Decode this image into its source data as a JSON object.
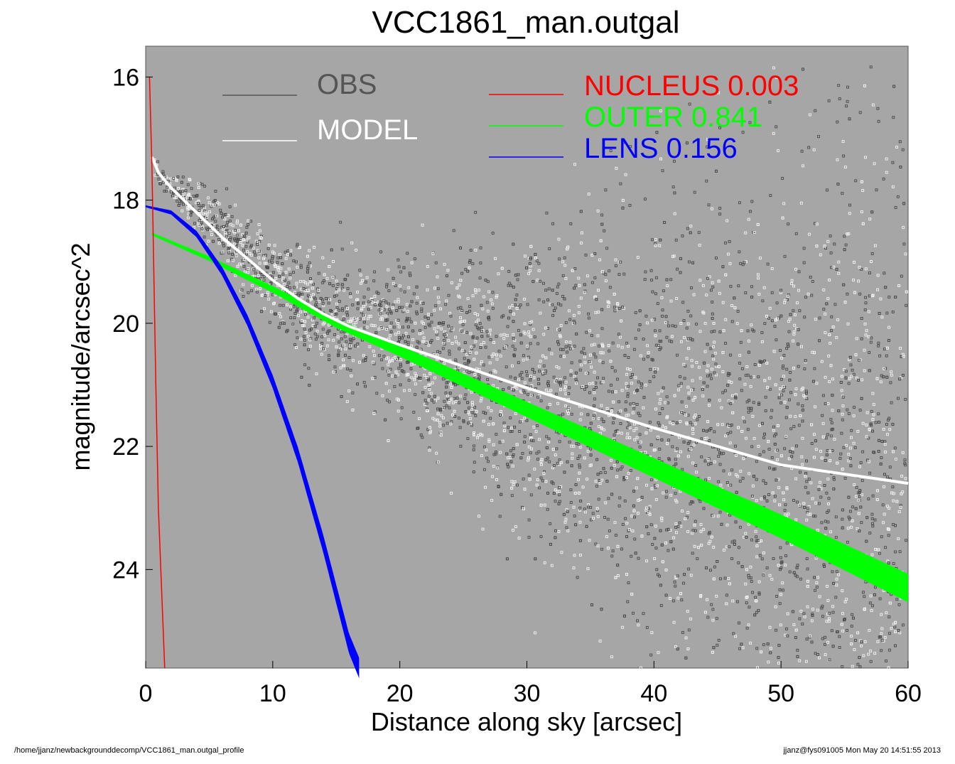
{
  "chart_data": {
    "type": "scatter",
    "title": "VCC1861_man.outgal",
    "xlabel": "Distance along sky [arcsec]",
    "ylabel": "magnitude/arcsec^2",
    "xlim": [
      0,
      60
    ],
    "ylim": [
      25.6,
      15.5
    ],
    "y_inverted": true,
    "xticks": [
      "0",
      "10",
      "20",
      "30",
      "40",
      "50",
      "60"
    ],
    "yticks": [
      "16",
      "18",
      "20",
      "22",
      "24"
    ],
    "background": "#a6a6a6",
    "grid": false,
    "legend_left": [
      {
        "label": "OBS",
        "color": "#555555"
      },
      {
        "label": "MODEL",
        "color": "#ffffff"
      }
    ],
    "legend_right": [
      {
        "name": "NUCLEUS",
        "value": "0.003",
        "color": "#ff0000"
      },
      {
        "name": "OUTER",
        "value": "0.841",
        "color": "#00ff00"
      },
      {
        "name": "LENS",
        "value": "0.156",
        "color": "#0000ff"
      }
    ],
    "series": [
      {
        "name": "OBS",
        "color": "#555555",
        "x": [
          0.3,
          0.5,
          0.8,
          1.0,
          1.5,
          2,
          3,
          4,
          5,
          6,
          8,
          10,
          12,
          14,
          16,
          18,
          20,
          22,
          25,
          28,
          30,
          35,
          40,
          45,
          50,
          55,
          60
        ],
        "y": [
          16.9,
          17.3,
          17.5,
          17.6,
          17.7,
          17.8,
          17.95,
          18.1,
          18.3,
          18.5,
          18.9,
          19.3,
          19.6,
          19.85,
          20.05,
          20.2,
          20.35,
          20.5,
          20.7,
          20.9,
          21.05,
          21.4,
          21.7,
          22.0,
          22.3,
          22.5,
          22.6
        ]
      },
      {
        "name": "MODEL",
        "color": "#ffffff",
        "x": [
          0.5,
          1,
          2,
          3,
          4,
          5,
          6,
          8,
          10,
          12,
          14,
          16,
          18,
          20,
          25,
          30,
          40,
          50,
          60
        ],
        "y": [
          17.3,
          17.55,
          17.8,
          18.0,
          18.2,
          18.4,
          18.6,
          18.95,
          19.3,
          19.6,
          19.85,
          20.05,
          20.2,
          20.35,
          20.7,
          21.05,
          21.7,
          22.3,
          22.6
        ]
      },
      {
        "name": "NUCLEUS",
        "color": "#ff0000",
        "x": [
          0.3,
          0.5,
          0.8,
          1.0,
          1.5
        ],
        "y": [
          16.0,
          17.5,
          21.0,
          23.0,
          25.6
        ]
      },
      {
        "name": "OUTER",
        "color": "#00ff00",
        "x": [
          0.5,
          5,
          10,
          15,
          20,
          30,
          40,
          50,
          60
        ],
        "y": [
          18.55,
          18.95,
          19.45,
          20.0,
          20.45,
          21.4,
          22.35,
          23.3,
          24.3
        ]
      },
      {
        "name": "LENS",
        "color": "#0000ff",
        "x": [
          0,
          2,
          4,
          6,
          8,
          10,
          12,
          14,
          16,
          16.8
        ],
        "y": [
          18.1,
          18.2,
          18.55,
          19.15,
          19.95,
          20.95,
          22.15,
          23.6,
          25.2,
          25.6
        ]
      }
    ]
  },
  "footer": {
    "left": "/home/jjanz/newbackgrounddecomp/VCC1861_man.outgal_profile",
    "right": "jjanz@fys091005  Mon May 20 14:51:55 2013"
  }
}
